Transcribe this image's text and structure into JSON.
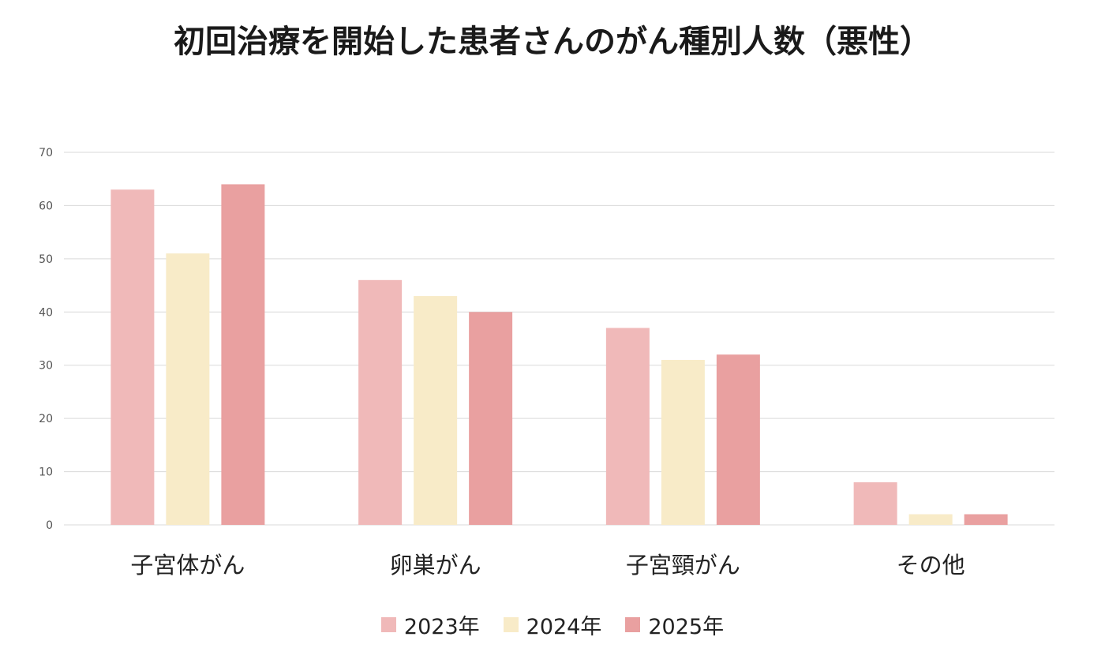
{
  "chart_data": {
    "type": "bar",
    "title": "初回治療を開始した患者さんのがん種別人数（悪性）",
    "xlabel": "",
    "ylabel": "",
    "ylim": [
      0,
      70
    ],
    "yticks": [
      0,
      10,
      20,
      30,
      40,
      50,
      60,
      70
    ],
    "grid": true,
    "legend_position": "bottom",
    "categories": [
      "子宮体がん",
      "卵巣がん",
      "子宮頸がん",
      "その他"
    ],
    "series": [
      {
        "name": "2023年",
        "color": "#f0b9b9",
        "values": [
          63,
          46,
          37,
          8
        ]
      },
      {
        "name": "2024年",
        "color": "#f8ebc8",
        "values": [
          51,
          43,
          31,
          2
        ]
      },
      {
        "name": "2025年",
        "color": "#e9a0a0",
        "values": [
          64,
          40,
          32,
          2
        ]
      }
    ]
  }
}
